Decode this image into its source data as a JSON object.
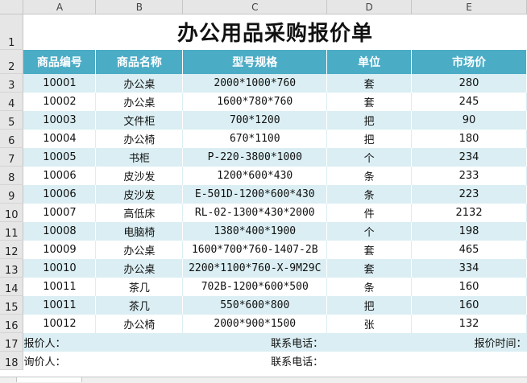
{
  "columns": [
    "A",
    "B",
    "C",
    "D",
    "E"
  ],
  "rows": [
    "1",
    "2",
    "3",
    "4",
    "5",
    "6",
    "7",
    "8",
    "9",
    "10",
    "11",
    "12",
    "13",
    "14",
    "15",
    "16",
    "17",
    "18"
  ],
  "title": "办公用品采购报价单",
  "headers": [
    "商品编号",
    "商品名称",
    "型号规格",
    "单位",
    "市场价"
  ],
  "items": [
    [
      "10001",
      "办公桌",
      "2000*1000*760",
      "套",
      "280"
    ],
    [
      "10002",
      "办公桌",
      "1600*780*760",
      "套",
      "245"
    ],
    [
      "10003",
      "文件柜",
      "700*1200",
      "把",
      "90"
    ],
    [
      "10004",
      "办公椅",
      "670*1100",
      "把",
      "180"
    ],
    [
      "10005",
      "书柜",
      "P-220-3800*1000",
      "个",
      "234"
    ],
    [
      "10006",
      "皮沙发",
      "1200*600*430",
      "条",
      "233"
    ],
    [
      "10006",
      "皮沙发",
      "E-501D-1200*600*430",
      "条",
      "223"
    ],
    [
      "10007",
      "高低床",
      "RL-02-1300*430*2000",
      "件",
      "2132"
    ],
    [
      "10008",
      "电脑椅",
      "1380*400*1900",
      "个",
      "198"
    ],
    [
      "10009",
      "办公桌",
      "1600*700*760-1407-2B",
      "套",
      "465"
    ],
    [
      "10010",
      "办公桌",
      "2200*1100*760-X-9M29C",
      "套",
      "334"
    ],
    [
      "10011",
      "茶几",
      "702B-1200*600*500",
      "条",
      "160"
    ],
    [
      "10011",
      "茶几",
      "550*600*800",
      "把",
      "160"
    ],
    [
      "10012",
      "办公椅",
      "2000*900*1500",
      "张",
      "132"
    ]
  ],
  "footer": {
    "quoter": "报价人：",
    "quoter_phone": "联系电话：",
    "quote_time": "报价时间：",
    "inquirer": "询价人：",
    "inquirer_phone": "联系电话："
  },
  "colors": {
    "header_bg": "#4bacc6",
    "band_bg": "#daeef3"
  }
}
